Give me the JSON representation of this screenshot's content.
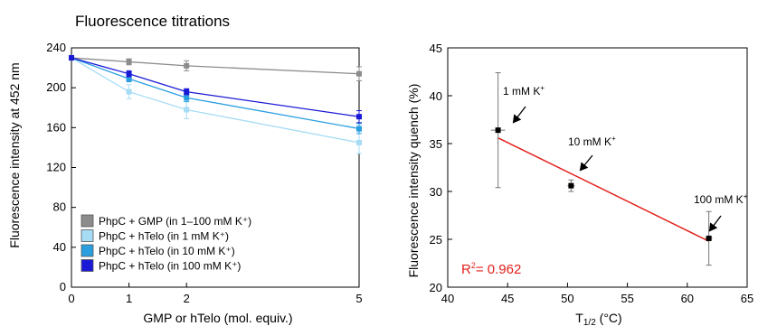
{
  "chart_data": [
    {
      "type": "line",
      "title": "Fluorescence titrations",
      "xlabel": "GMP or hTelo (mol. equiv.)",
      "ylabel": "Fluorescence intensity at 452 nm",
      "x": [
        0,
        1,
        2,
        5
      ],
      "xlim": [
        0,
        5
      ],
      "ylim": [
        0,
        240
      ],
      "xticks": [
        "0",
        "1",
        "2",
        "5"
      ],
      "yticks": [
        "0",
        "40",
        "80",
        "120",
        "160",
        "200",
        "240"
      ],
      "legend_position": "bottom-left",
      "series": [
        {
          "name": "PhpC + GMP (in 1–100 mM K⁺)",
          "color": "#8c8c8c",
          "values": [
            230,
            226,
            222,
            214
          ],
          "errors": [
            2,
            3,
            5,
            7
          ]
        },
        {
          "name": "PhpC + hTelo (in 1 mM K⁺)",
          "color": "#a6dcf5",
          "values": [
            230,
            196,
            178,
            145
          ],
          "errors": [
            2,
            7,
            9,
            11
          ]
        },
        {
          "name": "PhpC + hTelo (in 10 mM K⁺)",
          "color": "#2a9fe0",
          "values": [
            230,
            209,
            190,
            159
          ],
          "errors": [
            2,
            3,
            4,
            5
          ]
        },
        {
          "name": "PhpC + hTelo (in 100 mM K⁺)",
          "color": "#1a1ad6",
          "values": [
            230,
            214,
            196,
            171
          ],
          "errors": [
            2,
            3,
            3,
            6
          ]
        }
      ]
    },
    {
      "type": "scatter",
      "title": "",
      "xlabel_main": "T",
      "xlabel_sub": "1/2",
      "xlabel_unit": " (°C)",
      "ylabel": "Fluorescence intensity quench (%)",
      "xlim": [
        40,
        65
      ],
      "ylim": [
        20,
        45
      ],
      "xticks": [
        "40",
        "45",
        "50",
        "55",
        "60",
        "65"
      ],
      "yticks": [
        "20",
        "25",
        "30",
        "35",
        "40",
        "45"
      ],
      "points": [
        {
          "x": 44.2,
          "y": 36.4,
          "yerr": 6.0,
          "xerr": 0.6,
          "label_main": "1 mM K",
          "label_sup": "+"
        },
        {
          "x": 50.3,
          "y": 30.6,
          "yerr": 0.6,
          "xerr": 0.3,
          "label_main": "10 mM K",
          "label_sup": "+"
        },
        {
          "x": 61.8,
          "y": 25.1,
          "yerr": 2.8,
          "xerr": 0.3,
          "label_main": "100 mM K",
          "label_sup": "+"
        }
      ],
      "fit": {
        "x": [
          44.2,
          61.8
        ],
        "y": [
          35.6,
          24.8
        ],
        "color": "#e3201b"
      },
      "r2_label": "R",
      "r2_sup": "2",
      "r2_value": "= 0.962",
      "r2_color": "#e3201b"
    }
  ]
}
